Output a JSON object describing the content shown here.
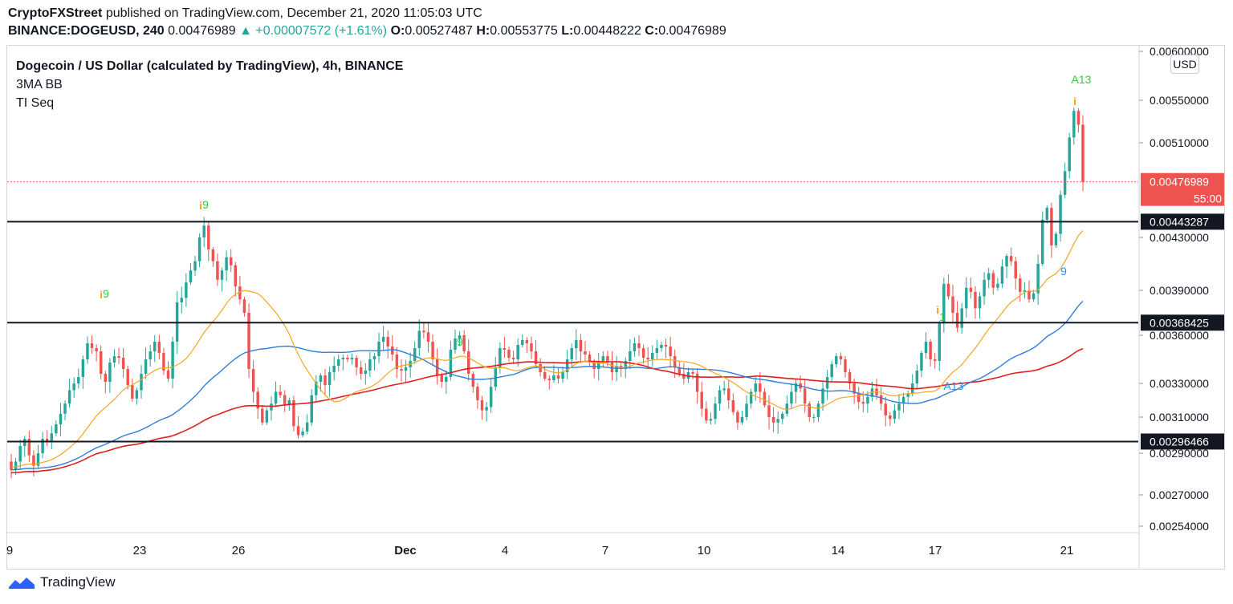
{
  "header": {
    "publisher": "CryptoFXStreet",
    "published_text": "published on TradingView.com, December 21, 2020 11:05:03 UTC",
    "symbol": "BINANCE:DOGEUSD, 240",
    "last": "0.00476989",
    "change": "▲ +0.00007572 (+1.61%)",
    "o_label": "O:",
    "o": "0.00527487",
    "h_label": "H:",
    "h": "0.00553775",
    "l_label": "L:",
    "l": "0.00448222",
    "c_label": "C:",
    "c": "0.00476989"
  },
  "legend": {
    "symbol_title": "Dogecoin / US Dollar (calculated by TradingView), 4h, BINANCE",
    "indicator_1": "3MA BB",
    "indicator_2": "TI Seq"
  },
  "unit": "USD",
  "footer": {
    "brand": "TradingView"
  },
  "colors": {
    "up": "#26a69a",
    "down": "#ef5350",
    "ma_fast": "#f5a623",
    "ma_mid": "#2f7ed8",
    "ma_slow": "#e02020",
    "seq_green": "#2ecc40",
    "seq_orange": "#f39c12",
    "seq_blue": "#2196f3"
  },
  "chart_data": {
    "type": "candlestick",
    "title": "Dogecoin / US Dollar (calculated by TradingView), 4h, BINANCE",
    "x_ticks": [
      "9",
      "23",
      "26",
      "Dec",
      "4",
      "7",
      "10",
      "14",
      "17",
      "21"
    ],
    "y_ticks": [
      "0.00600000",
      "0.00550000",
      "0.00510000",
      "0.00430000",
      "0.00390000",
      "0.00360000",
      "0.00330000",
      "0.00310000",
      "0.00290000",
      "0.00270000",
      "0.00254000"
    ],
    "horizontal_levels": [
      {
        "value": 0.00443287,
        "label": "0.00443287"
      },
      {
        "value": 0.00368425,
        "label": "0.00368425"
      },
      {
        "value": 0.00296466,
        "label": "0.00296466"
      }
    ],
    "last_price": {
      "value": 0.00476989,
      "label": "0.00476989",
      "countdown": "55:00"
    },
    "sequential_labels": [
      "9",
      "9",
      "9",
      "1",
      "9",
      "A13",
      "A13",
      "9"
    ],
    "closes": [
      0.00282,
      0.00286,
      0.00294,
      0.00298,
      0.00289,
      0.00284,
      0.0029,
      0.00298,
      0.00296,
      0.00301,
      0.00306,
      0.00312,
      0.00318,
      0.00326,
      0.0033,
      0.00334,
      0.00345,
      0.00355,
      0.00352,
      0.0035,
      0.00336,
      0.00331,
      0.00343,
      0.00347,
      0.00346,
      0.00339,
      0.00329,
      0.00321,
      0.00326,
      0.00336,
      0.00345,
      0.0035,
      0.00356,
      0.00349,
      0.00338,
      0.00333,
      0.00356,
      0.00382,
      0.00385,
      0.00396,
      0.00405,
      0.00412,
      0.0043,
      0.0044,
      0.00421,
      0.00412,
      0.00398,
      0.00405,
      0.00415,
      0.00409,
      0.00393,
      0.00384,
      0.00375,
      0.00339,
      0.00325,
      0.00315,
      0.00307,
      0.00314,
      0.00318,
      0.00325,
      0.00323,
      0.00317,
      0.0032,
      0.00305,
      0.003,
      0.00302,
      0.00307,
      0.00323,
      0.00331,
      0.00335,
      0.00329,
      0.00337,
      0.00341,
      0.00345,
      0.00346,
      0.00345,
      0.00346,
      0.0034,
      0.00336,
      0.00338,
      0.00345,
      0.00347,
      0.00356,
      0.00359,
      0.00353,
      0.00348,
      0.00339,
      0.00338,
      0.0034,
      0.00344,
      0.00352,
      0.00363,
      0.00362,
      0.00356,
      0.00345,
      0.00335,
      0.00331,
      0.00334,
      0.00351,
      0.00358,
      0.0036,
      0.0035,
      0.00336,
      0.00328,
      0.0032,
      0.00314,
      0.00316,
      0.00328,
      0.0034,
      0.00352,
      0.00351,
      0.00346,
      0.00345,
      0.00354,
      0.00357,
      0.00355,
      0.0035,
      0.00342,
      0.00337,
      0.00333,
      0.00332,
      0.00335,
      0.00333,
      0.00337,
      0.00345,
      0.00352,
      0.00357,
      0.0035,
      0.00348,
      0.00343,
      0.00339,
      0.00344,
      0.00347,
      0.00343,
      0.00337,
      0.00341,
      0.00339,
      0.00344,
      0.0035,
      0.00355,
      0.00352,
      0.00346,
      0.00345,
      0.00349,
      0.00352,
      0.00354,
      0.00353,
      0.00347,
      0.0034,
      0.00336,
      0.00333,
      0.00337,
      0.00336,
      0.00325,
      0.00315,
      0.00308,
      0.00309,
      0.00318,
      0.00326,
      0.00327,
      0.0032,
      0.00313,
      0.00307,
      0.0031,
      0.00318,
      0.00325,
      0.0033,
      0.00325,
      0.00317,
      0.0031,
      0.00307,
      0.00309,
      0.00312,
      0.00318,
      0.00325,
      0.0033,
      0.00327,
      0.00318,
      0.0031,
      0.0031,
      0.00318,
      0.00327,
      0.00334,
      0.00342,
      0.00347,
      0.00345,
      0.00337,
      0.0033,
      0.00324,
      0.00319,
      0.00318,
      0.00322,
      0.00327,
      0.00323,
      0.00318,
      0.00311,
      0.00309,
      0.00314,
      0.00318,
      0.00322,
      0.00324,
      0.0033,
      0.00338,
      0.00349,
      0.00356,
      0.00345,
      0.00344,
      0.00368,
      0.00395,
      0.00386,
      0.00375,
      0.00365,
      0.00378,
      0.00392,
      0.00389,
      0.00378,
      0.00386,
      0.00398,
      0.00403,
      0.00392,
      0.00395,
      0.00408,
      0.00416,
      0.00412,
      0.00399,
      0.00389,
      0.0039,
      0.00384,
      0.00388,
      0.0041,
      0.00445,
      0.00455,
      0.00424,
      0.00433,
      0.00466,
      0.00486,
      0.00515,
      0.0054,
      0.00527,
      0.00477
    ]
  }
}
